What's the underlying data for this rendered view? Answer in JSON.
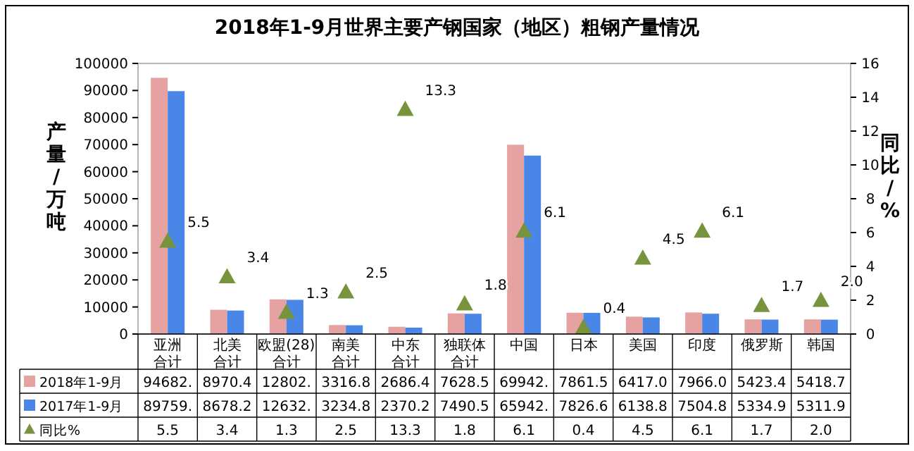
{
  "chart_data": {
    "type": "bar",
    "title": "2018年1-9月世界主要产钢国家（地区）粗钢产量情况",
    "ylabel": "产量/万吨",
    "y2label": "同比/%",
    "categories": [
      "亚洲合计",
      "北美合计",
      "欧盟(28)合计",
      "南美合计",
      "中东合计",
      "独联体合计",
      "中国",
      "日本",
      "美国",
      "印度",
      "俄罗斯",
      "韩国"
    ],
    "series": [
      {
        "name": "2018年1-9月",
        "color": "#e6a1a1",
        "values": [
          94682,
          8970.4,
          12802,
          3316.8,
          2686.4,
          7628.5,
          69942,
          7861.5,
          6417.0,
          7966.0,
          5423.4,
          5418.7
        ],
        "value_labels": [
          "94682.",
          "8970.4",
          "12802.",
          "3316.8",
          "2686.4",
          "7628.5",
          "69942.",
          "7861.5",
          "6417.0",
          "7966.0",
          "5423.4",
          "5418.7"
        ]
      },
      {
        "name": "2017年1-9月",
        "color": "#4a86e8",
        "values": [
          89759,
          8678.2,
          12632,
          3234.8,
          2370.2,
          7490.5,
          65942,
          7826.6,
          6138.8,
          7504.8,
          5334.9,
          5311.9
        ],
        "value_labels": [
          "89759.",
          "8678.2",
          "12632.",
          "3234.8",
          "2370.2",
          "7490.5",
          "65942.",
          "7826.6",
          "6138.8",
          "7504.8",
          "5334.9",
          "5311.9"
        ]
      },
      {
        "name": "同比%",
        "type": "scatter",
        "axis": "y2",
        "marker": "triangle",
        "color": "#77933c",
        "values": [
          5.5,
          3.4,
          1.3,
          2.5,
          13.3,
          1.8,
          6.1,
          0.4,
          4.5,
          6.1,
          1.7,
          2.0
        ],
        "value_labels": [
          "5.5",
          "3.4",
          "1.3",
          "2.5",
          "13.3",
          "1.8",
          "6.1",
          "0.4",
          "4.5",
          "6.1",
          "1.7",
          "2.0"
        ]
      }
    ],
    "ylim": [
      0,
      100000
    ],
    "yticks": [
      0,
      10000,
      20000,
      30000,
      40000,
      50000,
      60000,
      70000,
      80000,
      90000,
      100000
    ],
    "y2lim": [
      0,
      16
    ],
    "y2ticks": [
      0,
      2,
      4,
      6,
      8,
      10,
      12,
      14,
      16
    ],
    "data_labels": true,
    "legend": "bottom",
    "grid": false
  }
}
